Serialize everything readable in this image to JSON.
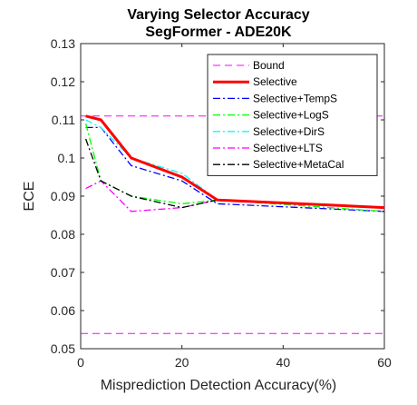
{
  "chart_data": {
    "type": "line",
    "title": [
      "Varying Selector Accuracy",
      "SegFormer - ADE20K"
    ],
    "xlabel": "Misprediction Detection Accuracy(%)",
    "ylabel": "ECE",
    "xlim": [
      0,
      60
    ],
    "ylim": [
      0.05,
      0.13
    ],
    "xticks": [
      0,
      20,
      40,
      60
    ],
    "yticks": [
      0.05,
      0.06,
      0.07,
      0.08,
      0.09,
      0.1,
      0.11,
      0.12,
      0.13
    ],
    "ytick_labels": [
      "0.05",
      "0.06",
      "0.07",
      "0.08",
      "0.09",
      "0.1",
      "0.11",
      "0.12",
      "0.13"
    ],
    "xtick_labels": [
      "0",
      "20",
      "40",
      "60"
    ],
    "grid": false,
    "legend_position": "top-right",
    "series": [
      {
        "name": "Bound",
        "color": "#ff00ff",
        "style": "dashed",
        "width": 1,
        "x": [
          0,
          60
        ],
        "y": [
          0.111,
          0.111
        ],
        "extra_lines": [
          {
            "x": [
              0,
              60
            ],
            "y": [
              0.054,
              0.054
            ]
          }
        ]
      },
      {
        "name": "Selective",
        "color": "#ff0000",
        "style": "solid",
        "width": 3,
        "x": [
          1,
          4,
          10,
          20,
          27,
          60
        ],
        "y": [
          0.111,
          0.11,
          0.1,
          0.095,
          0.089,
          0.087
        ]
      },
      {
        "name": "Selective+TempS",
        "color": "#0000ff",
        "style": "dashdot",
        "width": 1.3,
        "x": [
          1,
          4,
          10,
          20,
          27,
          60
        ],
        "y": [
          0.108,
          0.108,
          0.098,
          0.094,
          0.088,
          0.086
        ]
      },
      {
        "name": "Selective+LogS",
        "color": "#00ff00",
        "style": "dashdot",
        "width": 1.3,
        "x": [
          1,
          4,
          10,
          20,
          27,
          60
        ],
        "y": [
          0.109,
          0.094,
          0.09,
          0.088,
          0.089,
          0.086
        ]
      },
      {
        "name": "Selective+DirS",
        "color": "#00ffff",
        "style": "dashdot",
        "width": 1.3,
        "x": [
          1,
          4,
          10,
          20,
          27,
          60
        ],
        "y": [
          0.11,
          0.108,
          0.1,
          0.096,
          0.089,
          0.087
        ]
      },
      {
        "name": "Selective+LTS",
        "color": "#ff00ff",
        "style": "dashdot",
        "width": 1.3,
        "x": [
          1,
          4,
          10,
          20,
          27,
          60
        ],
        "y": [
          0.092,
          0.094,
          0.086,
          0.087,
          0.089,
          0.087
        ]
      },
      {
        "name": "Selective+MetaCal",
        "color": "#000000",
        "style": "dashdot",
        "width": 1.3,
        "x": [
          1,
          4,
          10,
          20,
          27,
          60
        ],
        "y": [
          0.105,
          0.094,
          0.09,
          0.087,
          0.089,
          0.087
        ]
      }
    ]
  }
}
